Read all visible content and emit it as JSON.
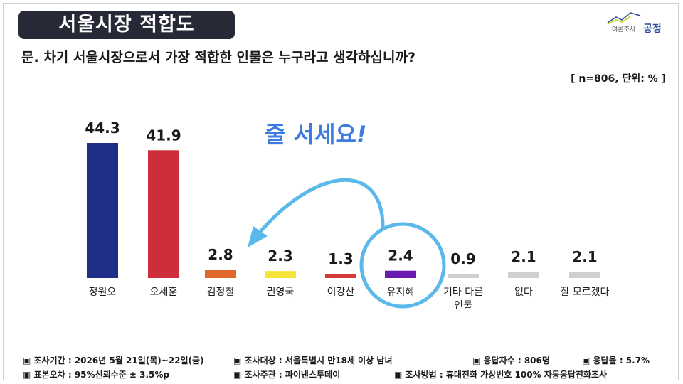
{
  "title": "서울시장 적합도",
  "question": "문. 차기 서울시장으로서 가장 적합한 인물은 누구라고 생각하십니까?",
  "sample_note": "[ n=806, 단위: % ]",
  "callout": {
    "text": "줄 서세요",
    "mark": "!"
  },
  "logo": {
    "small": "여론조사",
    "big": "공정",
    "icon": "trend-line-icon"
  },
  "colors": {
    "accent": "#3d7be0",
    "title_bg": "#272a36"
  },
  "chart_data": {
    "type": "bar",
    "categories": [
      "정원오",
      "오세훈",
      "김정철",
      "권영국",
      "이강산",
      "유지혜",
      "기타 다른 인물",
      "없다",
      "잘 모르겠다"
    ],
    "values": [
      44.3,
      41.9,
      2.8,
      2.3,
      1.3,
      2.4,
      0.9,
      2.1,
      2.1
    ],
    "labels": [
      "44.3",
      "41.9",
      "2.8",
      "2.3",
      "1.3",
      "2.4",
      "0.9",
      "2.1",
      "2.1"
    ],
    "colors": [
      "#1f2e86",
      "#cc2f3a",
      "#e06a2c",
      "#f7e43a",
      "#d43a3a",
      "#6a1cb0",
      "#cfcfcf",
      "#cfcfcf",
      "#cfcfcf"
    ],
    "ylim": [
      0,
      50
    ],
    "annotation": "유지혜 circled with arrow pointing to 김정철"
  },
  "footer": {
    "period": "▣ 조사기간 : 2026년 5월 21일(목)~22일(금)",
    "target": "▣ 조사대상 : 서울특별시 만18세 이상 남녀",
    "respondents": "▣ 응답자수 : 806명",
    "response_rate": "▣ 응답율 : 5.7%",
    "error": "▣ 표본오차 : 95%신뢰수준 ± 3.5%p",
    "sponsor": "▣ 조사주관 : 파이낸스투데이",
    "method": "▣ 조사방법 : 휴대전화 가상번호 100% 자동응답전화조사"
  }
}
